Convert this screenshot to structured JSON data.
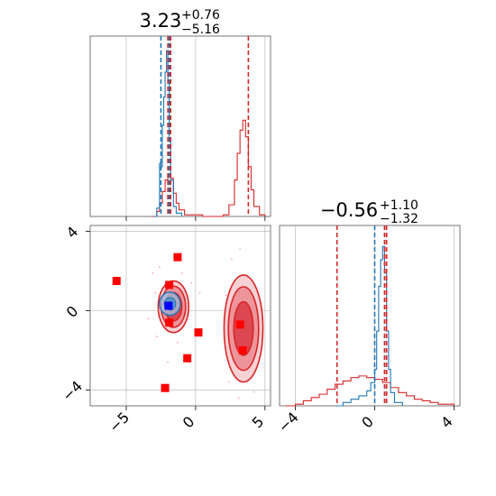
{
  "chart_data": {
    "type": "corner",
    "params": [
      {
        "title": {
          "value": "3.23",
          "plus": "+0.76",
          "minus": "−5.16"
        },
        "range": [
          -7.6,
          5.4
        ],
        "ticks": [
          -5,
          0,
          5
        ],
        "tick_labels": [
          "−5",
          "0",
          "5"
        ],
        "blue_lines": [
          -2.5,
          -1.9
        ],
        "red_lines": [
          -2.0,
          -1.8,
          3.8
        ],
        "blue_hist": [
          [
            -3.0,
            0
          ],
          [
            -2.8,
            0.05
          ],
          [
            -2.6,
            0.32
          ],
          [
            -2.5,
            0.3
          ],
          [
            -2.4,
            0.55
          ],
          [
            -2.3,
            0.72
          ],
          [
            -2.2,
            0.87
          ],
          [
            -2.1,
            1.0
          ],
          [
            -2.0,
            0.82
          ],
          [
            -1.9,
            0.45
          ],
          [
            -1.8,
            0.22
          ],
          [
            -1.6,
            0.06
          ],
          [
            -1.4,
            0.02
          ],
          [
            -1.0,
            0
          ]
        ],
        "red_hist": [
          [
            -3.2,
            0
          ],
          [
            -2.8,
            0.03
          ],
          [
            -2.6,
            0.08
          ],
          [
            -2.4,
            0.15
          ],
          [
            -2.2,
            0.22
          ],
          [
            -2.0,
            0.24
          ],
          [
            -1.8,
            0.23
          ],
          [
            -1.6,
            0.14
          ],
          [
            -1.4,
            0.08
          ],
          [
            -1.2,
            0.04
          ],
          [
            -0.8,
            0.01
          ],
          [
            0.5,
            0
          ],
          [
            2.0,
            0.01
          ],
          [
            2.4,
            0.07
          ],
          [
            2.8,
            0.22
          ],
          [
            3.0,
            0.38
          ],
          [
            3.2,
            0.52
          ],
          [
            3.4,
            0.58
          ],
          [
            3.6,
            0.48
          ],
          [
            3.8,
            0.3
          ],
          [
            4.0,
            0.16
          ],
          [
            4.2,
            0.06
          ],
          [
            4.6,
            0.01
          ],
          [
            5.0,
            0
          ]
        ]
      },
      {
        "title": {
          "value": "−0.56",
          "plus": "+1.10",
          "minus": "−1.32"
        },
        "range": [
          -4.8,
          4.3
        ],
        "ticks": [
          -4,
          0,
          4
        ],
        "tick_labels": [
          "−4",
          "0",
          "4"
        ],
        "blue_lines": [
          0.0,
          0.5
        ],
        "red_lines": [
          -1.9,
          0.5,
          0.6
        ],
        "blue_hist": [
          [
            -2.0,
            0
          ],
          [
            -1.6,
            0.02
          ],
          [
            -1.2,
            0.04
          ],
          [
            -0.8,
            0.06
          ],
          [
            -0.4,
            0.09
          ],
          [
            -0.2,
            0.14
          ],
          [
            0.0,
            0.22
          ],
          [
            0.1,
            0.45
          ],
          [
            0.2,
            0.72
          ],
          [
            0.3,
            0.88
          ],
          [
            0.4,
            0.96
          ],
          [
            0.5,
            0.8
          ],
          [
            0.6,
            0.45
          ],
          [
            0.7,
            0.22
          ],
          [
            0.8,
            0.08
          ],
          [
            1.0,
            0.02
          ],
          [
            1.4,
            0
          ]
        ],
        "red_hist": [
          [
            -4.5,
            0
          ],
          [
            -4.0,
            0.01
          ],
          [
            -3.6,
            0.03
          ],
          [
            -3.2,
            0.05
          ],
          [
            -2.8,
            0.07
          ],
          [
            -2.4,
            0.1
          ],
          [
            -2.0,
            0.13
          ],
          [
            -1.6,
            0.15
          ],
          [
            -1.2,
            0.17
          ],
          [
            -0.8,
            0.18
          ],
          [
            -0.4,
            0.17
          ],
          [
            0.0,
            0.16
          ],
          [
            0.4,
            0.14
          ],
          [
            0.8,
            0.11
          ],
          [
            1.2,
            0.08
          ],
          [
            1.6,
            0.06
          ],
          [
            2.0,
            0.04
          ],
          [
            2.4,
            0.03
          ],
          [
            2.8,
            0.02
          ],
          [
            3.2,
            0.01
          ],
          [
            4.0,
            0
          ]
        ]
      }
    ],
    "red_blobs": [
      {
        "cx": -1.6,
        "cy": 0.2,
        "rx": 1.1,
        "ry": 2.6,
        "levels": [
          0.55,
          0.8,
          1.0
        ]
      },
      {
        "cx": 3.45,
        "cy": -0.9,
        "rx": 1.4,
        "ry": 5.4,
        "levels": [
          0.5,
          0.78,
          1.0
        ]
      }
    ],
    "blue_blob": {
      "cx": -1.85,
      "cy": 0.35,
      "rx": 0.75,
      "ry": 0.45
    },
    "red_points": [
      [
        -5.7,
        1.5
      ],
      [
        -1.3,
        2.7
      ],
      [
        -1.9,
        1.3
      ],
      [
        -1.9,
        -0.6
      ],
      [
        0.2,
        -1.1
      ],
      [
        -0.6,
        -2.4
      ],
      [
        -2.2,
        -3.9
      ],
      [
        3.2,
        -0.7
      ],
      [
        3.4,
        -2.0
      ]
    ],
    "blue_point": [
      -1.95,
      0.25
    ],
    "scatter_cloud": [
      [
        -3.1,
        1.9
      ],
      [
        -2.6,
        2.2
      ],
      [
        -1.0,
        1.9
      ],
      [
        -0.3,
        1.4
      ],
      [
        -0.6,
        -0.2
      ],
      [
        -2.8,
        -1.3
      ],
      [
        -1.3,
        -1.6
      ],
      [
        -2.9,
        0.9
      ],
      [
        -0.8,
        0.9
      ],
      [
        2.6,
        2.6
      ],
      [
        3.2,
        3.1
      ],
      [
        4.2,
        1.3
      ],
      [
        4.5,
        -2.7
      ],
      [
        2.4,
        -3.6
      ],
      [
        3.1,
        -4.4
      ],
      [
        4.2,
        -4.1
      ],
      [
        2.2,
        0.8
      ],
      [
        4.6,
        0.2
      ],
      [
        -2.0,
        -2.6
      ],
      [
        0.3,
        0.9
      ],
      [
        -3.4,
        -0.4
      ]
    ],
    "colors": {
      "blue": "#1f77b4",
      "red": "#d62728",
      "grid": "#b0b0b0"
    }
  }
}
